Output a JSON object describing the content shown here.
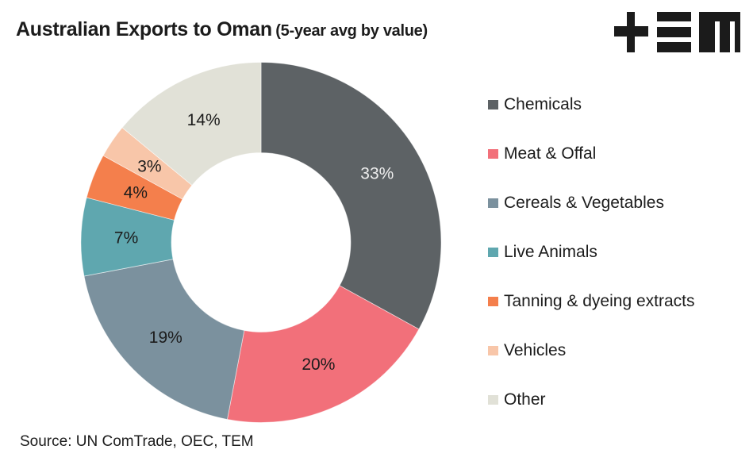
{
  "header": {
    "title": "Australian Exports to Oman",
    "subtitle": "(5-year avg by value)",
    "logo_text": "TEM"
  },
  "chart_data": {
    "type": "pie",
    "variant": "donut",
    "title": "Australian Exports to Oman (5-year avg by value)",
    "unit": "%",
    "start": "top",
    "direction": "clockwise",
    "legend_position": "right",
    "slices": [
      {
        "label": "Chemicals",
        "value": 33,
        "display": "33%",
        "color": "#5d6265",
        "label_color": "#eeeeee"
      },
      {
        "label": "Meat & Offal",
        "value": 20,
        "display": "20%",
        "color": "#f2707a",
        "label_color": "#1c1c1c"
      },
      {
        "label": "Cereals & Vegetables",
        "value": 19,
        "display": "19%",
        "color": "#7b919e",
        "label_color": "#1c1c1c"
      },
      {
        "label": "Live Animals",
        "value": 7,
        "display": "7%",
        "color": "#5fa7af",
        "label_color": "#1c1c1c"
      },
      {
        "label": "Tanning & dyeing extracts",
        "value": 4,
        "display": "4%",
        "color": "#f47f4c",
        "label_color": "#1c1c1c"
      },
      {
        "label": "Vehicles",
        "value": 3,
        "display": "3%",
        "color": "#f8c6a9",
        "label_color": "#1c1c1c"
      },
      {
        "label": "Other",
        "value": 14,
        "display": "14%",
        "color": "#e1e1d7",
        "label_color": "#1c1c1c"
      }
    ]
  },
  "footer": {
    "source": "Source: UN ComTrade, OEC, TEM"
  }
}
